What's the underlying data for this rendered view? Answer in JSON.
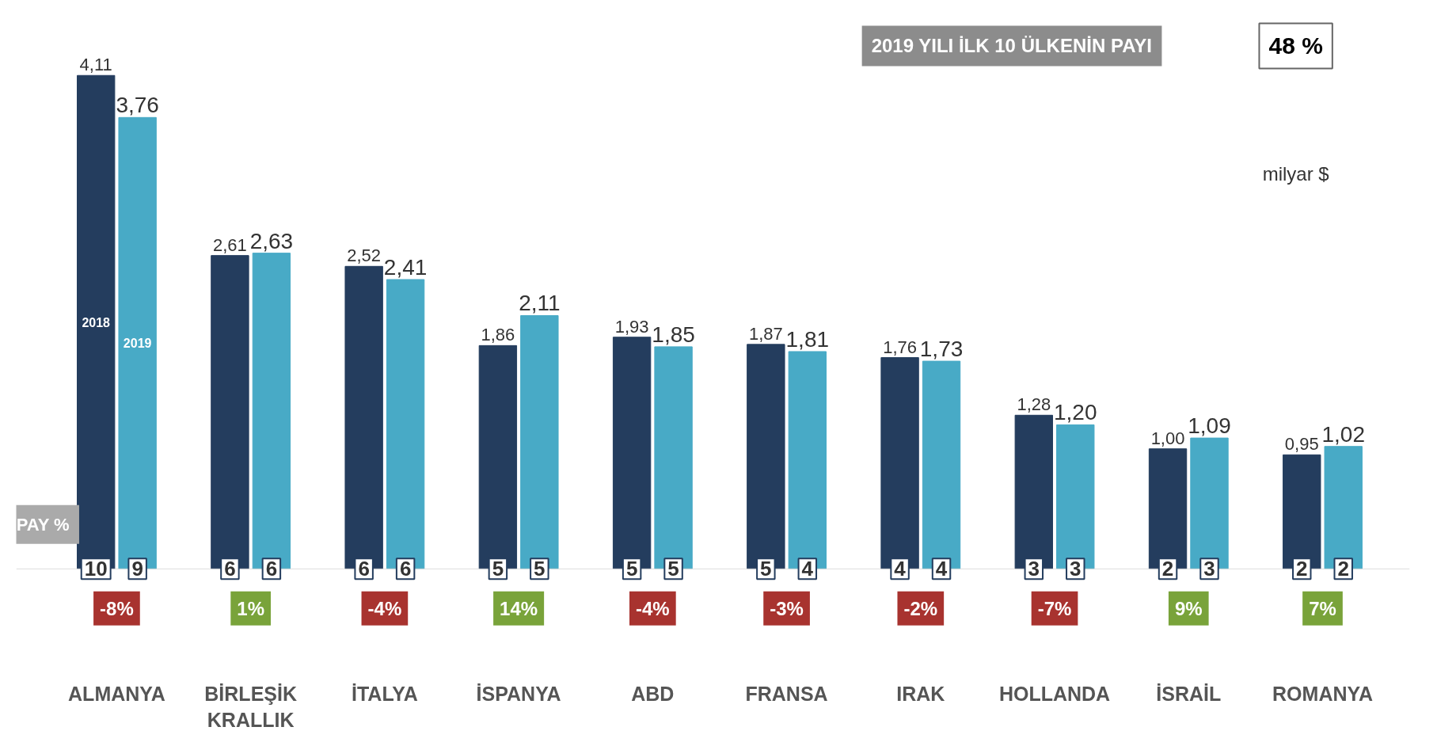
{
  "chart_data": {
    "type": "bar",
    "categories": [
      "ALMANYA",
      "BİRLEŞİK KRALLIK",
      "İTALYA",
      "İSPANYA",
      "ABD",
      "FRANSA",
      "IRAK",
      "HOLLANDA",
      "İSRAİL",
      "ROMANYA"
    ],
    "series": [
      {
        "name": "2018",
        "color": "#243d5e",
        "values": [
          4.11,
          2.61,
          2.52,
          1.86,
          1.93,
          1.87,
          1.76,
          1.28,
          1.0,
          0.95
        ],
        "value_labels": [
          "4,11",
          "2,61",
          "2,52",
          "1,86",
          "1,93",
          "1,87",
          "1,76",
          "1,28",
          "1,00",
          "0,95"
        ]
      },
      {
        "name": "2019",
        "color": "#48aac6",
        "values": [
          3.76,
          2.63,
          2.41,
          2.11,
          1.85,
          1.81,
          1.73,
          1.2,
          1.09,
          1.02
        ],
        "value_labels": [
          "3,76",
          "2,63",
          "2,41",
          "2,11",
          "1,85",
          "1,81",
          "1,73",
          "1,20",
          "1,09",
          "1,02"
        ]
      }
    ],
    "legend": false,
    "tick_labels": "x",
    "annotations": [
      "2019 YILI İLK 10 ÜLKENİN PAYI",
      "48 %",
      "milyar $",
      "PAY %",
      {
        "text": "10",
        "x": "ALMANYA",
        "y": 0
      },
      {
        "text": "9",
        "x": "ALMANYA",
        "y": 0
      },
      "-8%",
      {
        "text": "6",
        "x": "BİRLEŞİK KRALLIK",
        "y": 0
      },
      {
        "text": "6",
        "x": "BİRLEŞİK KRALLIK",
        "y": 0
      },
      "1%",
      {
        "text": "6",
        "x": "İTALYA",
        "y": 0
      },
      {
        "text": "6",
        "x": "İTALYA",
        "y": 0
      },
      "-4%",
      {
        "text": "5",
        "x": "İSPANYA",
        "y": 0
      },
      {
        "text": "5",
        "x": "İSPANYA",
        "y": 0
      },
      "14%",
      {
        "text": "5",
        "x": "ABD",
        "y": 0
      },
      {
        "text": "5",
        "x": "ABD",
        "y": 0
      },
      "-4%",
      {
        "text": "5",
        "x": "FRANSA",
        "y": 0
      },
      {
        "text": "4",
        "x": "FRANSA",
        "y": 0
      },
      "-3%",
      {
        "text": "4",
        "x": "IRAK",
        "y": 0
      },
      {
        "text": "4",
        "x": "IRAK",
        "y": 0
      },
      "-2%",
      {
        "text": "3",
        "x": "HOLLANDA",
        "y": 0
      },
      {
        "text": "3",
        "x": "HOLLANDA",
        "y": 0
      },
      "-7%",
      {
        "text": "2",
        "x": "İSRAİL",
        "y": 0
      },
      {
        "text": "3",
        "x": "İSRAİL",
        "y": 0
      },
      "9%",
      {
        "text": "2",
        "x": "ROMANYA",
        "y": 0
      },
      {
        "text": "2",
        "x": "ROMANYA",
        "y": 0
      },
      "7%"
    ]
  }
}
